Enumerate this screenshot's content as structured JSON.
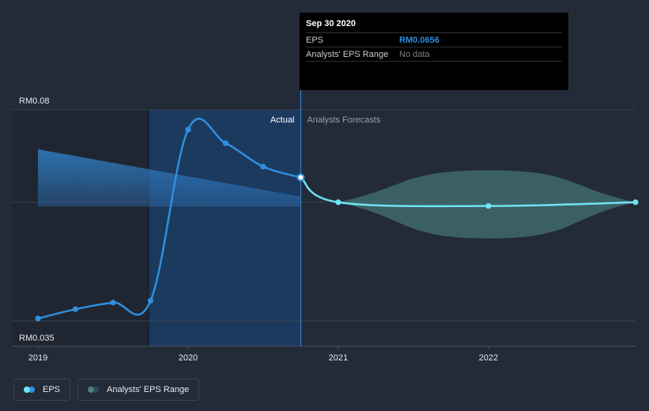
{
  "tooltip": {
    "date": "Sep 30 2020",
    "rows": [
      {
        "label": "EPS",
        "value": "RM0.0656"
      },
      {
        "label": "Analysts' EPS Range",
        "value": "No data"
      }
    ]
  },
  "legend": {
    "items": [
      {
        "label": "EPS",
        "color_a": "#6fe3f0",
        "color_b": "#2f8fdf"
      },
      {
        "label": "Analysts' EPS Range",
        "color_a": "#4b7c80",
        "color_b": "#2e4a5c"
      }
    ]
  },
  "chart_data": {
    "type": "line",
    "xlim": [
      2019.0,
      2022.98
    ],
    "ylim": [
      0.035,
      0.08
    ],
    "y_labels": {
      "top": "RM0.08",
      "bottom": "RM0.035"
    },
    "x_ticks": [
      {
        "x": 2019,
        "label": "2019"
      },
      {
        "x": 2020,
        "label": "2020"
      },
      {
        "x": 2021,
        "label": "2021"
      },
      {
        "x": 2022,
        "label": "2022"
      }
    ],
    "divider_x": 2020.75,
    "region_labels": {
      "actual": "Actual",
      "forecast": "Analysts Forecasts"
    },
    "colors": {
      "actual_line": "#2f8fdf",
      "forecast_line": "#6fe3f0",
      "forecast_band": "#3f6a6c",
      "actual_band_top": "#2f7dc4",
      "highlight": "#1d3d66"
    },
    "series": [
      {
        "name": "EPS",
        "kind": "actual",
        "x": [
          2019.0,
          2019.25,
          2019.5,
          2019.75,
          2020.0,
          2020.25,
          2020.5,
          2020.75
        ],
        "y": [
          0.0355,
          0.0375,
          0.0389,
          0.0393,
          0.0758,
          0.0729,
          0.0679,
          0.0656
        ]
      },
      {
        "name": "EPS",
        "kind": "forecast",
        "x": [
          2020.75,
          2021.0,
          2022.0,
          2022.98
        ],
        "y": [
          0.0656,
          0.0603,
          0.0595,
          0.0603
        ]
      }
    ],
    "forecast_range": {
      "x": [
        2021.0,
        2022.0,
        2022.98
      ],
      "low": [
        0.0603,
        0.0526,
        0.0603
      ],
      "high": [
        0.0603,
        0.0671,
        0.0603
      ]
    },
    "actual_range_band": {
      "x": [
        2019.0,
        2020.75
      ],
      "high": [
        0.0716,
        0.0615
      ],
      "low": [
        0.0594,
        0.0594
      ]
    }
  }
}
